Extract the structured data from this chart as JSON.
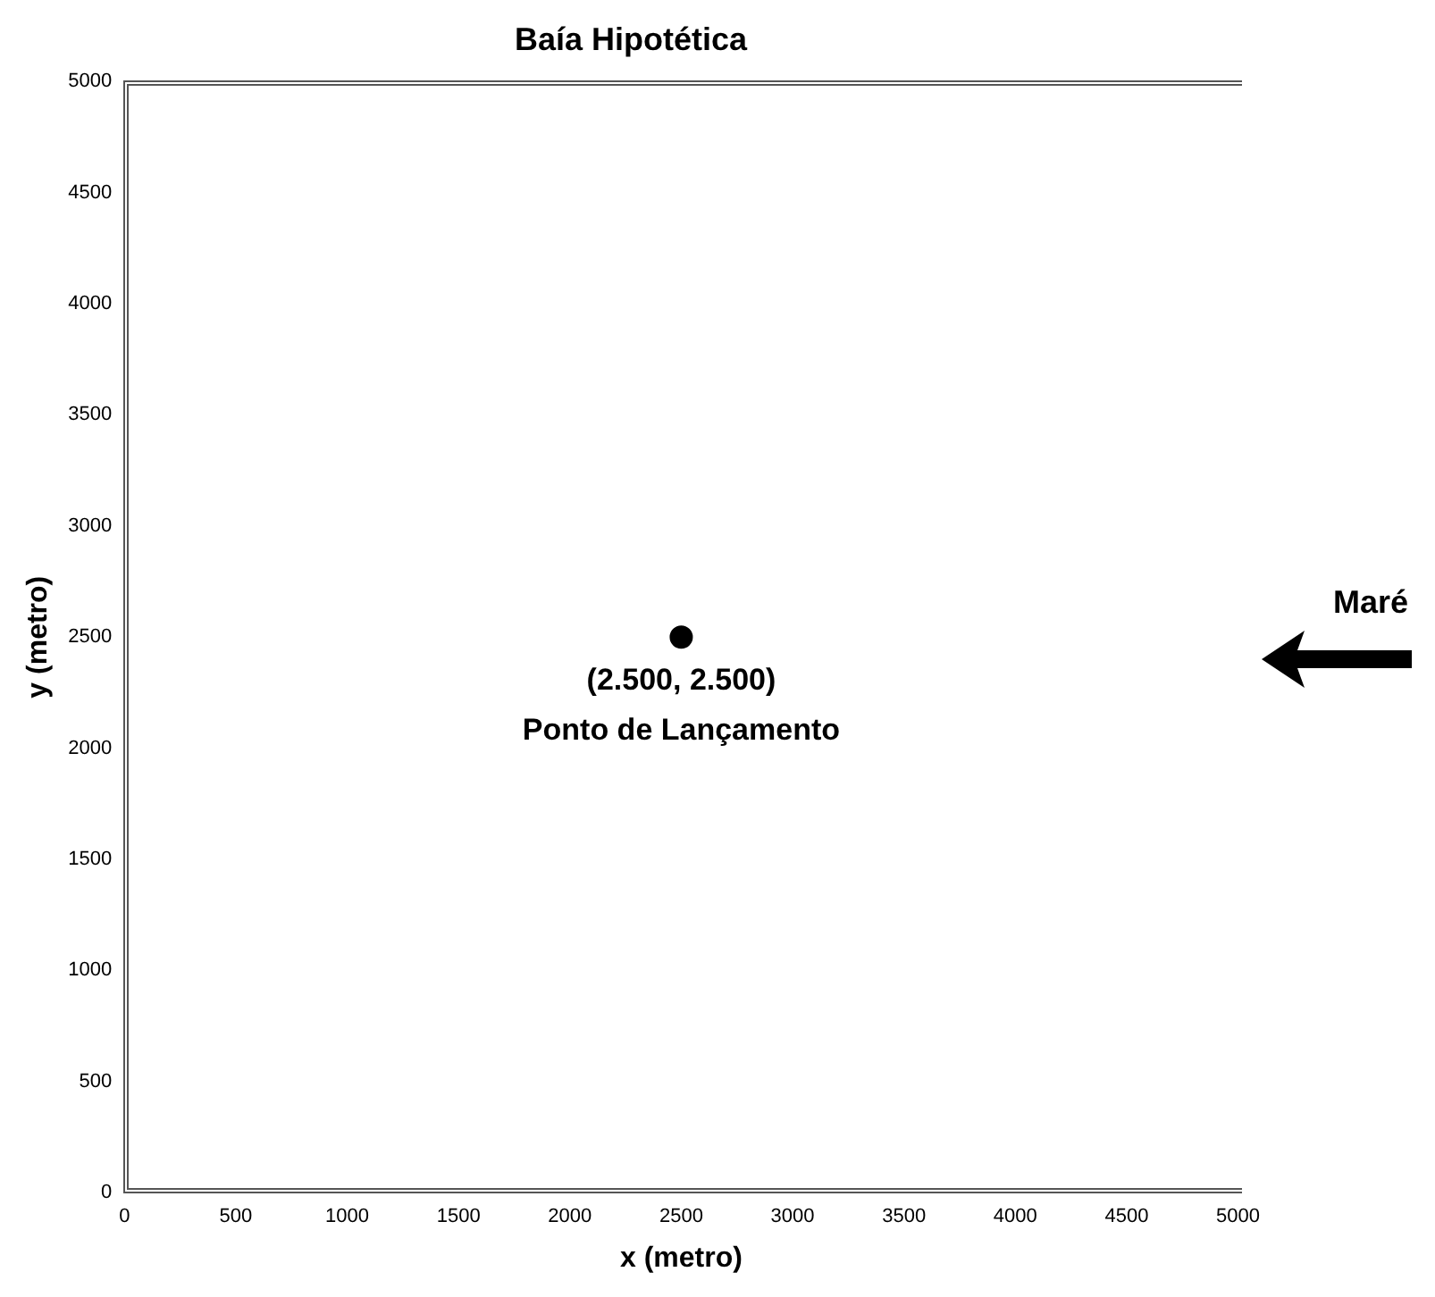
{
  "chart_data": {
    "type": "scatter",
    "title": "Baía Hipotética",
    "xlabel": "x (metro)",
    "ylabel": "y (metro)",
    "x": [
      2500
    ],
    "values": [
      2500
    ],
    "color": "#000000",
    "marker": "circle",
    "xlim": [
      0,
      5000
    ],
    "ylim": [
      0,
      5000
    ],
    "xticks": [
      0,
      500,
      1000,
      1500,
      2000,
      2500,
      3000,
      3500,
      4000,
      4500,
      5000
    ],
    "yticks": [
      0,
      500,
      1000,
      1500,
      2000,
      2500,
      3000,
      3500,
      4000,
      4500,
      5000
    ],
    "grid": false,
    "annotations": [
      {
        "text": "(2.500, 2.500)",
        "x": 2500,
        "y": 2500
      },
      {
        "text": "Ponto de Lançamento",
        "x": 2500,
        "y": 2500
      },
      "Maré"
    ]
  }
}
